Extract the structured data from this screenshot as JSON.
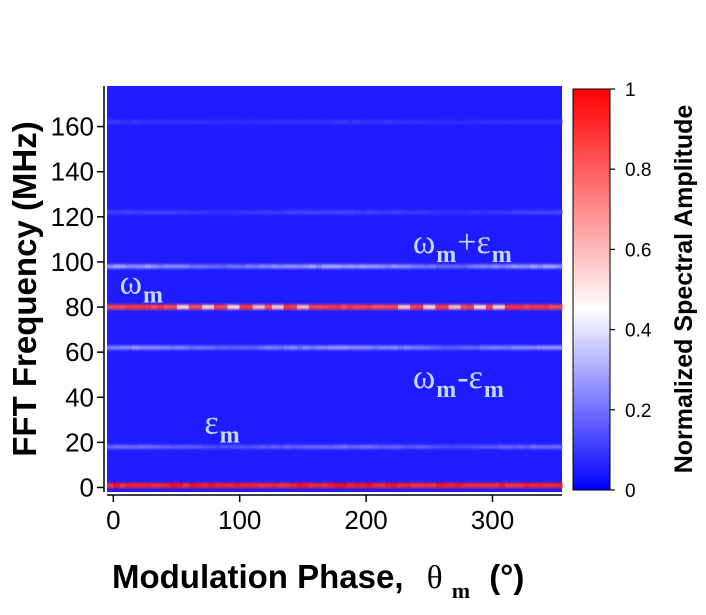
{
  "chart_data": {
    "type": "heatmap",
    "x": {
      "label": "Modulation Phase,",
      "symbol": "θ",
      "symbol_sub": "m",
      "unit": "(°)",
      "range": [
        -5,
        355
      ],
      "ticks": [
        0,
        100,
        200,
        300
      ],
      "tick_labels": [
        "0",
        "100",
        "200",
        "300"
      ]
    },
    "y": {
      "label": "FFT Frequency (MHz)",
      "range": [
        -2,
        178
      ],
      "ticks": [
        0,
        20,
        40,
        60,
        80,
        100,
        120,
        140,
        160
      ],
      "tick_labels": [
        "0",
        "20",
        "40",
        "60",
        "80",
        "100",
        "120",
        "140",
        "160"
      ]
    },
    "colorbar": {
      "label": "Normalized Spectral Amplitude",
      "range": [
        0,
        1
      ],
      "ticks": [
        0,
        0.2,
        0.4,
        0.6,
        0.8,
        1
      ],
      "tick_labels": [
        "0",
        "0.2",
        "0.4",
        "0.6",
        "0.8",
        "1"
      ],
      "colors": [
        "#0000ff",
        "#ffffff",
        "#ff0000"
      ]
    },
    "background_amplitude": 0.05,
    "bands": [
      {
        "freq": 0,
        "amplitude": 0.97
      },
      {
        "freq": 18,
        "amplitude": 0.2
      },
      {
        "freq": 62,
        "amplitude": 0.27
      },
      {
        "freq": 80,
        "amplitude": 0.9
      },
      {
        "freq": 98,
        "amplitude": 0.3
      },
      {
        "freq": 122,
        "amplitude": 0.12
      },
      {
        "freq": 162,
        "amplitude": 0.1
      }
    ],
    "annotations": [
      {
        "id": "omega-m",
        "main": "ω",
        "sub": "m",
        "op": "",
        "main2": "",
        "sub2": "",
        "x": 5,
        "y": 86
      },
      {
        "id": "omega-plus-eps",
        "main": "ω",
        "sub": "m",
        "op": "+",
        "main2": "ε",
        "sub2": "m",
        "x": 237,
        "y": 104
      },
      {
        "id": "omega-minus-eps",
        "main": "ω",
        "sub": "m",
        "op": "-",
        "main2": "ε",
        "sub2": "m",
        "x": 237,
        "y": 44
      },
      {
        "id": "eps-m",
        "main": "ε",
        "sub": "m",
        "op": "",
        "main2": "",
        "sub2": "",
        "x": 72,
        "y": 24
      }
    ]
  }
}
